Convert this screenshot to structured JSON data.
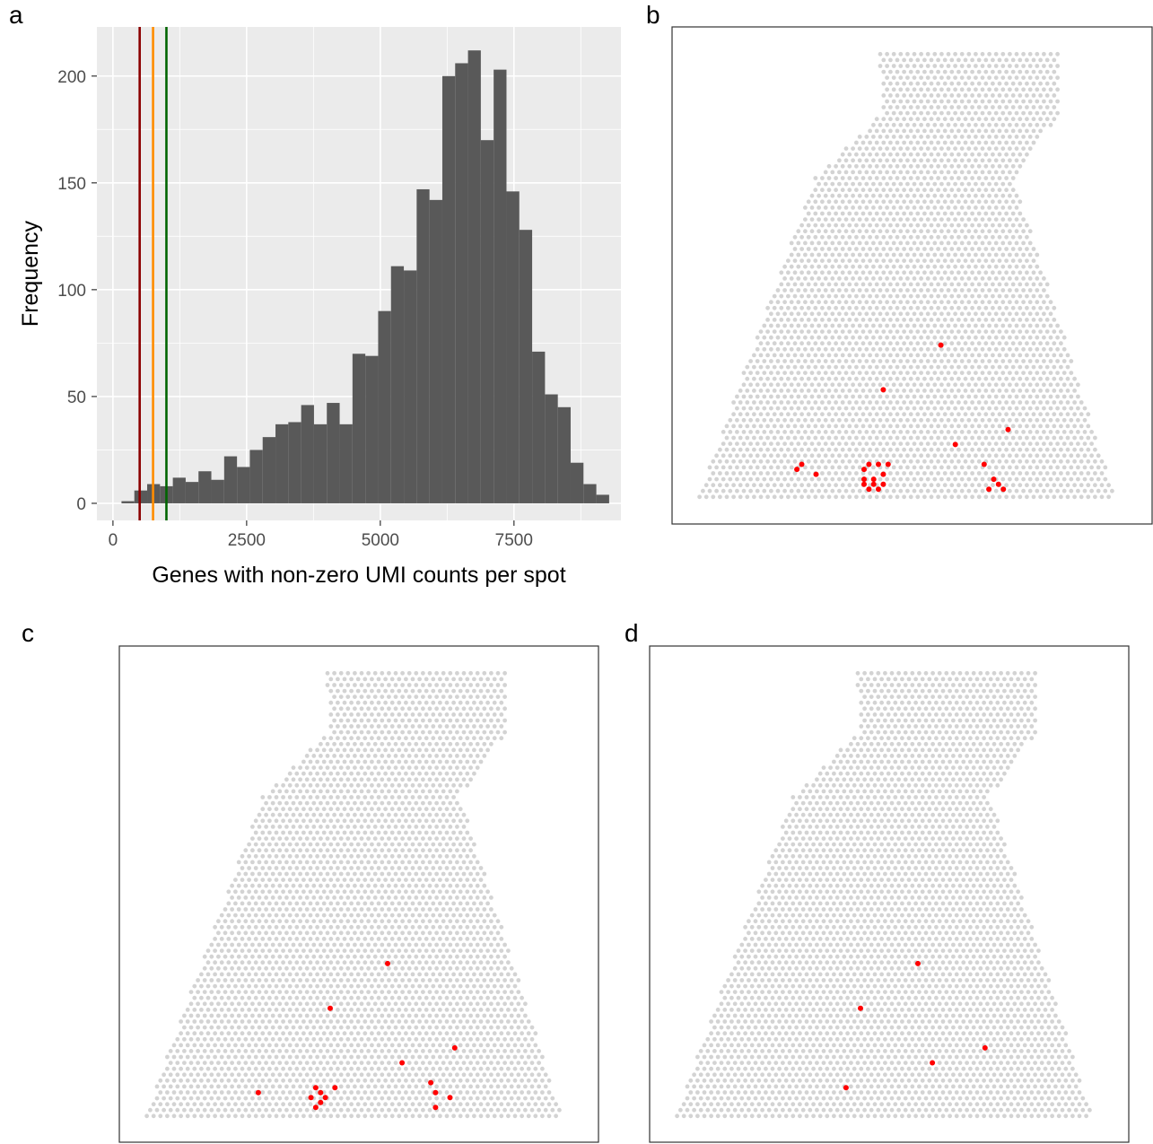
{
  "panels": {
    "a": {
      "letter": "a"
    },
    "b": {
      "letter": "b"
    },
    "c": {
      "letter": "c"
    },
    "d": {
      "letter": "d"
    }
  },
  "chart_data": [
    {
      "panel": "a",
      "type": "bar",
      "subtype": "histogram",
      "title": "",
      "xlabel": "Genes with non-zero UMI counts per spot",
      "ylabel": "Frequency",
      "xlim": [
        -300,
        9500
      ],
      "ylim": [
        -8,
        223
      ],
      "x_ticks": [
        0,
        2500,
        5000,
        7500
      ],
      "x_tick_labels": [
        "0",
        "2500",
        "5000",
        "7500"
      ],
      "y_ticks": [
        0,
        50,
        100,
        150,
        200
      ],
      "y_tick_labels": [
        "0",
        "50",
        "100",
        "150",
        "200"
      ],
      "grid": true,
      "panel_background": "#ebebeb",
      "bar_color": "#595959",
      "bin_width": 240,
      "bin_starts": [
        160,
        400,
        640,
        880,
        1120,
        1360,
        1600,
        1840,
        2080,
        2320,
        2560,
        2800,
        3040,
        3280,
        3520,
        3760,
        4000,
        4240,
        4480,
        4720,
        4960,
        5200,
        5440,
        5680,
        5920,
        6160,
        6400,
        6640,
        6880,
        7120,
        7360,
        7600,
        7840,
        8080,
        8320,
        8560,
        8800,
        9040
      ],
      "values": [
        1,
        6,
        9,
        8,
        12,
        10,
        15,
        11,
        22,
        17,
        25,
        31,
        37,
        38,
        46,
        37,
        47,
        37,
        70,
        69,
        90,
        111,
        109,
        147,
        142,
        200,
        206,
        212,
        170,
        203,
        146,
        128,
        71,
        51,
        45,
        19,
        9,
        4
      ],
      "vlines": [
        {
          "x": 500,
          "color": "#8b0000"
        },
        {
          "x": 750,
          "color": "#ff8c00"
        },
        {
          "x": 1000,
          "color": "#006400"
        }
      ]
    },
    {
      "panel": "b",
      "type": "scatter",
      "title": "",
      "description_colors": {
        "background_spot": "#d3d3d3",
        "highlight_spot": "#ff0000"
      },
      "highlight_count": 25
    },
    {
      "panel": "c",
      "type": "scatter",
      "title": "",
      "description_colors": {
        "background_spot": "#d3d3d3",
        "highlight_spot": "#ff0000"
      },
      "highlight_count": 18
    },
    {
      "panel": "d",
      "type": "scatter",
      "title": "",
      "description_colors": {
        "background_spot": "#d3d3d3",
        "highlight_spot": "#ff0000"
      },
      "highlight_count": 6
    }
  ]
}
